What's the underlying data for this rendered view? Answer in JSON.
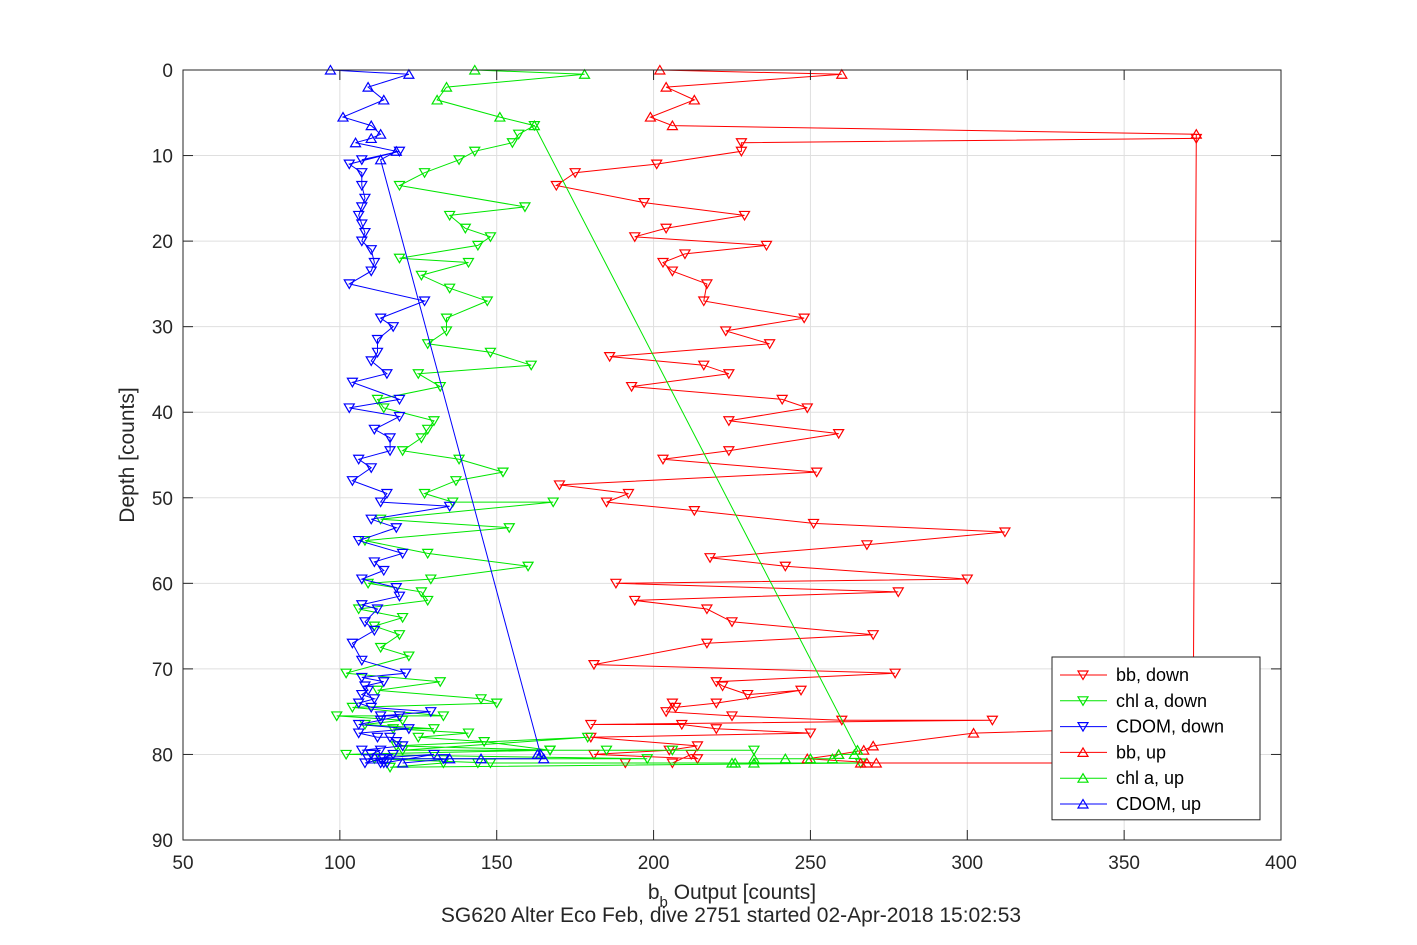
{
  "chart_data": {
    "type": "line",
    "xlabel": "b_b Output [counts]",
    "xlabel_main": "b",
    "xlabel_sub": "b",
    "xlabel_rest": " Output [counts]",
    "ylabel": "Depth [counts]",
    "caption": "SG620 Alter Eco Feb, dive 2751 started 02-Apr-2018 15:02:53",
    "xlim": [
      50,
      400
    ],
    "ylim": [
      0,
      90
    ],
    "y_reversed": true,
    "grid": true,
    "legend_position": "bottom-right",
    "xticks": [
      50,
      100,
      150,
      200,
      250,
      300,
      350,
      400
    ],
    "yticks": [
      0,
      10,
      20,
      30,
      40,
      50,
      60,
      70,
      80,
      90
    ],
    "series": [
      {
        "name": "bb, down",
        "color": "#ff0000",
        "marker": "triangle-down",
        "x": [
          373,
          228,
          228,
          201,
          175,
          169,
          197,
          229,
          204,
          194,
          236,
          210,
          203,
          206,
          217,
          216,
          248,
          223,
          237,
          186,
          216,
          224,
          193,
          241,
          249,
          224,
          259,
          224,
          203,
          252,
          170,
          192,
          185,
          213,
          251,
          312,
          268,
          218,
          242,
          300,
          188,
          278,
          194,
          217,
          225,
          270,
          217,
          181,
          277,
          220,
          222,
          230,
          247,
          220,
          207,
          206,
          204,
          225,
          260,
          308,
          180,
          209,
          220,
          250,
          180,
          214,
          205,
          181,
          214,
          212,
          206,
          191
        ],
        "y": [
          8,
          8.5,
          9.5,
          11,
          12,
          13.5,
          15.5,
          17,
          18.5,
          19.5,
          20.5,
          21.5,
          22.5,
          23.5,
          25,
          27,
          29,
          30.5,
          32,
          33.5,
          34.5,
          35.5,
          37,
          38.5,
          39.5,
          41,
          42.5,
          44.5,
          45.5,
          47,
          48.5,
          49.5,
          50.5,
          51.5,
          53,
          54,
          55.5,
          57,
          58,
          59.5,
          60,
          61,
          62,
          63,
          64.5,
          66,
          67,
          69.5,
          70.5,
          71.5,
          72,
          73,
          72.5,
          74,
          74.5,
          74,
          75,
          75.5,
          76,
          76,
          76.5,
          76.5,
          77,
          77.5,
          78,
          79,
          79.5,
          80,
          80.5,
          80,
          81,
          81
        ]
      },
      {
        "name": "chl a, down",
        "color": "#00e600",
        "marker": "triangle-down",
        "x": [
          162,
          157,
          155,
          143,
          138,
          127,
          119,
          159,
          135,
          140,
          148,
          144,
          119,
          141,
          126,
          135,
          147,
          134,
          134,
          128,
          148,
          161,
          125,
          132,
          112,
          114,
          130,
          128,
          126,
          120,
          138,
          152,
          137,
          127,
          136,
          168,
          113,
          154,
          108,
          128,
          160,
          129,
          109,
          126,
          128,
          106,
          120,
          111,
          119,
          113,
          122,
          102,
          132,
          112,
          145,
          150,
          104,
          133,
          99,
          120,
          108,
          130,
          117,
          141,
          125,
          146,
          167,
          118,
          179,
          120,
          206,
          232,
          185,
          167,
          102,
          198,
          111,
          148,
          144,
          266,
          116,
          133
        ],
        "y": [
          6.5,
          7.5,
          8.5,
          9.5,
          10.5,
          12,
          13.5,
          16,
          17,
          18.5,
          19.5,
          20.5,
          22,
          22.5,
          24,
          25.5,
          27,
          29,
          30.5,
          32,
          33,
          34.5,
          35.5,
          37,
          38.5,
          39.5,
          41,
          42,
          43,
          44.5,
          45.5,
          47,
          48,
          49.5,
          50.5,
          50.5,
          52.5,
          53.5,
          55,
          56.5,
          58,
          59.5,
          60,
          61,
          62,
          63,
          64,
          65,
          66,
          67.5,
          68.5,
          70.5,
          71.5,
          72.5,
          73.5,
          74,
          74.5,
          75.5,
          75.5,
          76,
          76.5,
          77,
          77,
          77.5,
          78,
          78.5,
          79.5,
          79,
          78,
          79.5,
          79.5,
          79.5,
          79.5,
          79.5,
          80,
          80.5,
          80.5,
          81,
          81,
          81,
          81.5,
          81
        ]
      },
      {
        "name": "CDOM, down",
        "color": "#0000ff",
        "marker": "triangle-down",
        "x": [
          107,
          119,
          103,
          107,
          107,
          108,
          107,
          106,
          107,
          108,
          107,
          110,
          111,
          110,
          103,
          127,
          113,
          117,
          112,
          112,
          110,
          115,
          104,
          119,
          103,
          119,
          111,
          116,
          116,
          106,
          110,
          104,
          115,
          113,
          135,
          110,
          118,
          106,
          120,
          111,
          114,
          107,
          118,
          119,
          107,
          112,
          108,
          111,
          104,
          107,
          121,
          107,
          114,
          108,
          109,
          107,
          111,
          106,
          110,
          129,
          113,
          119,
          113,
          106,
          122,
          106,
          112,
          116,
          118,
          120,
          107,
          113,
          110,
          117,
          113,
          133,
          114,
          108,
          113,
          114,
          130,
          109,
          115
        ],
        "y": [
          10.5,
          9.5,
          11,
          12,
          13.5,
          15,
          16,
          17,
          18,
          19,
          20,
          21,
          22.5,
          23.5,
          25,
          27,
          29,
          30,
          31.5,
          33,
          34,
          35.5,
          36.5,
          38.5,
          39.5,
          40.5,
          42,
          43,
          44.5,
          45.5,
          46.5,
          48,
          49.5,
          50.5,
          51,
          52.5,
          53.5,
          55,
          56.5,
          57.5,
          58.5,
          59.5,
          60.5,
          61.5,
          62.5,
          63,
          64.5,
          65.5,
          67,
          69,
          70.5,
          71,
          71.5,
          72,
          72.5,
          73,
          73.5,
          74,
          74.5,
          75,
          75.5,
          75.5,
          76,
          76.5,
          77,
          77.5,
          78,
          78,
          78.5,
          79,
          79.5,
          79.5,
          80,
          80,
          80.5,
          80.5,
          80.5,
          81,
          81,
          81,
          80,
          80.5,
          81
        ]
      },
      {
        "name": "bb, up",
        "color": "#ff0000",
        "marker": "triangle-up",
        "x": [
          202,
          260,
          204,
          213,
          199,
          206,
          373,
          372,
          360,
          351,
          349,
          302,
          270,
          267,
          259,
          249,
          271,
          266,
          268,
          372,
          372
        ],
        "y": [
          0,
          0.5,
          2,
          3.5,
          5.5,
          6.5,
          7.5,
          76,
          76.5,
          77,
          77,
          77.5,
          79,
          79.5,
          80,
          80.5,
          81,
          81,
          81,
          81,
          81
        ]
      },
      {
        "name": "chl a, up",
        "color": "#00e600",
        "marker": "triangle-up",
        "x": [
          143,
          178,
          134,
          131,
          151,
          162,
          265,
          264,
          259,
          257,
          250,
          242,
          232,
          232,
          225,
          226
        ],
        "y": [
          0,
          0.5,
          2,
          3.5,
          5.5,
          6.5,
          79.5,
          80,
          80,
          80.5,
          80.5,
          80.5,
          80.5,
          81,
          81,
          81
        ]
      },
      {
        "name": "CDOM, up",
        "color": "#0000ff",
        "marker": "triangle-up",
        "x": [
          97,
          122,
          109,
          114,
          101,
          110,
          113,
          110,
          105,
          118,
          113,
          164,
          163,
          165,
          145,
          135,
          120
        ],
        "y": [
          0,
          0.5,
          2,
          3.5,
          5.5,
          6.5,
          7.5,
          8,
          8.5,
          9.5,
          10.5,
          80,
          80,
          80.5,
          80.5,
          80.5,
          81
        ]
      }
    ]
  }
}
